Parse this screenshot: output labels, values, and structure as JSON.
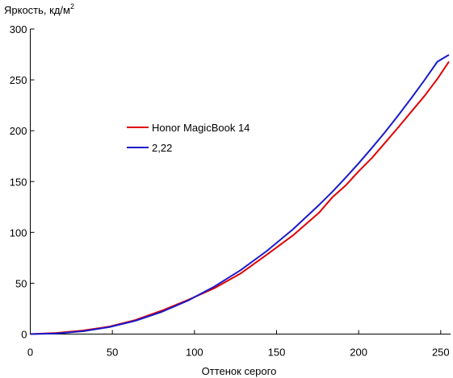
{
  "chart_data": {
    "type": "line",
    "title": "",
    "xlabel": "Оттенок серого",
    "ylabel": "Яркость, кд/м",
    "ylabel_superscript": "2",
    "xlim": [
      0,
      256
    ],
    "ylim": [
      0,
      300
    ],
    "xticks": [
      0,
      50,
      100,
      150,
      200,
      250
    ],
    "yticks": [
      0,
      50,
      100,
      150,
      200,
      250,
      300
    ],
    "grid": false,
    "legend_position": "center-left",
    "series": [
      {
        "name": "Honor MagicBook 14",
        "color": "#e00000",
        "x": [
          0,
          16,
          32,
          48,
          64,
          80,
          96,
          112,
          128,
          144,
          160,
          176,
          184,
          192,
          200,
          208,
          216,
          224,
          232,
          240,
          248,
          255
        ],
        "y": [
          0,
          1.1,
          3.5,
          7.3,
          13.8,
          23.0,
          33.5,
          45.0,
          59.5,
          78.0,
          97.0,
          119.5,
          134.5,
          146.0,
          160.0,
          173.0,
          188.0,
          203.0,
          218.5,
          234.0,
          251.0,
          268.0
        ]
      },
      {
        "name": "2,22",
        "color": "#1a1acc",
        "x": [
          0,
          16,
          32,
          48,
          64,
          80,
          96,
          112,
          128,
          144,
          160,
          176,
          184,
          192,
          200,
          208,
          216,
          224,
          232,
          240,
          248,
          255
        ],
        "y": [
          0,
          0.6,
          2.8,
          6.8,
          13.1,
          21.8,
          32.9,
          46.6,
          62.8,
          81.6,
          103.0,
          127.1,
          140.0,
          153.7,
          167.9,
          182.9,
          198.5,
          214.8,
          231.8,
          249.5,
          267.9,
          274.6
        ]
      }
    ]
  }
}
